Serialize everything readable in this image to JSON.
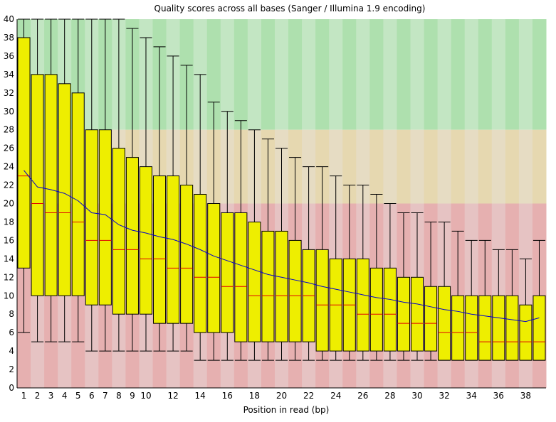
{
  "chart_data": {
    "type": "box",
    "title": "Quality scores across all bases (Sanger / Illumina 1.9 encoding)",
    "xlabel": "Position in read (bp)",
    "ylabel": "",
    "ylim": [
      0,
      40
    ],
    "y_ticks": [
      "0",
      "2",
      "4",
      "6",
      "8",
      "10",
      "12",
      "14",
      "16",
      "18",
      "20",
      "22",
      "24",
      "26",
      "28",
      "30",
      "32",
      "34",
      "36",
      "38",
      "40"
    ],
    "x_ticks": [
      "1",
      "2",
      "3",
      "4",
      "5",
      "6",
      "7",
      "8",
      "9",
      "10",
      "12",
      "14",
      "16",
      "18",
      "20",
      "22",
      "24",
      "26",
      "28",
      "30",
      "32",
      "34",
      "36",
      "38"
    ],
    "x_tick_positions": [
      1,
      2,
      3,
      4,
      5,
      6,
      7,
      8,
      9,
      10,
      12,
      14,
      16,
      18,
      20,
      22,
      24,
      26,
      28,
      30,
      32,
      34,
      36,
      38
    ],
    "quality_bands": [
      {
        "name": "good",
        "from": 28,
        "to": 40,
        "color": "#c3e6c3",
        "alt_color": "#aee0ae"
      },
      {
        "name": "reasonable",
        "from": 20,
        "to": 28,
        "color": "#e6dcc3",
        "alt_color": "#e6d8b0"
      },
      {
        "name": "poor",
        "from": 0,
        "to": 20,
        "color": "#e6c3c3",
        "alt_color": "#e6b0b0"
      }
    ],
    "colors": {
      "box": "#eeee00",
      "median": "#e00000",
      "mean": "#0000cc",
      "whisker": "#000000"
    },
    "positions": [
      1,
      2,
      3,
      4,
      5,
      6,
      7,
      8,
      9,
      10,
      11,
      12,
      13,
      14,
      15,
      16,
      17,
      18,
      19,
      20,
      21,
      22,
      23,
      24,
      25,
      26,
      27,
      28,
      29,
      30,
      31,
      32,
      33,
      34,
      35,
      36,
      37,
      38,
      39
    ],
    "whisker_high": [
      40,
      40,
      40,
      40,
      40,
      40,
      40,
      40,
      39,
      38,
      37,
      36,
      35,
      34,
      31,
      30,
      29,
      28,
      27,
      26,
      25,
      24,
      24,
      23,
      22,
      22,
      21,
      20,
      19,
      19,
      18,
      18,
      17,
      16,
      16,
      15,
      15,
      14,
      16
    ],
    "q3": [
      38,
      34,
      34,
      33,
      32,
      28,
      28,
      26,
      25,
      24,
      23,
      23,
      22,
      21,
      20,
      19,
      19,
      18,
      17,
      17,
      16,
      15,
      15,
      14,
      14,
      14,
      13,
      13,
      12,
      12,
      11,
      11,
      10,
      10,
      10,
      10,
      10,
      9,
      10
    ],
    "median": [
      23,
      20,
      19,
      19,
      18,
      16,
      16,
      15,
      15,
      14,
      14,
      13,
      13,
      12,
      12,
      11,
      11,
      10,
      10,
      10,
      10,
      10,
      9,
      9,
      9,
      8,
      8,
      8,
      7,
      7,
      7,
      6,
      6,
      6,
      5,
      5,
      5,
      5,
      5
    ],
    "q1": [
      13,
      10,
      10,
      10,
      10,
      9,
      9,
      8,
      8,
      8,
      7,
      7,
      7,
      6,
      6,
      6,
      5,
      5,
      5,
      5,
      5,
      5,
      4,
      4,
      4,
      4,
      4,
      4,
      4,
      4,
      4,
      3,
      3,
      3,
      3,
      3,
      3,
      3,
      3
    ],
    "whisker_low": [
      6,
      5,
      5,
      5,
      5,
      4,
      4,
      4,
      4,
      4,
      4,
      4,
      4,
      3,
      3,
      3,
      3,
      3,
      3,
      3,
      3,
      3,
      3,
      3,
      3,
      3,
      3,
      3,
      3,
      3,
      3,
      3,
      3,
      3,
      3,
      3,
      3,
      3,
      3
    ],
    "mean": [
      23.6,
      21.8,
      21.5,
      21.1,
      20.3,
      19.0,
      18.8,
      17.7,
      17.1,
      16.8,
      16.4,
      16.1,
      15.6,
      15.0,
      14.3,
      13.8,
      13.3,
      12.8,
      12.3,
      12.0,
      11.7,
      11.4,
      11.0,
      10.7,
      10.4,
      10.1,
      9.8,
      9.6,
      9.3,
      9.1,
      8.8,
      8.5,
      8.3,
      8.0,
      7.8,
      7.6,
      7.4,
      7.2,
      7.6
    ]
  }
}
